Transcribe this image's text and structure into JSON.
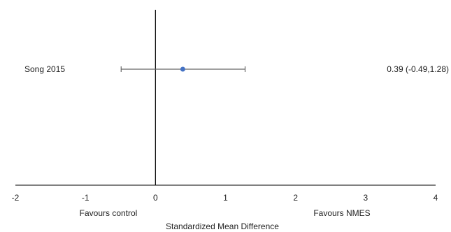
{
  "chart_data": {
    "type": "forest",
    "xlabel": "Standardized Mean Difference",
    "xlim": [
      -2,
      4
    ],
    "x_ticks": [
      -2,
      -1,
      0,
      1,
      2,
      3,
      4
    ],
    "reference_line": 0,
    "favours_left": "Favours control",
    "favours_right": "Favours NMES",
    "studies": [
      {
        "name": "Song 2015",
        "estimate": 0.39,
        "ci_low": -0.49,
        "ci_high": 1.28,
        "label": "0.39 (-0.49,1.28)"
      }
    ],
    "colors": {
      "point": "#4472c4",
      "line": "#666666",
      "axis": "#000000"
    }
  }
}
